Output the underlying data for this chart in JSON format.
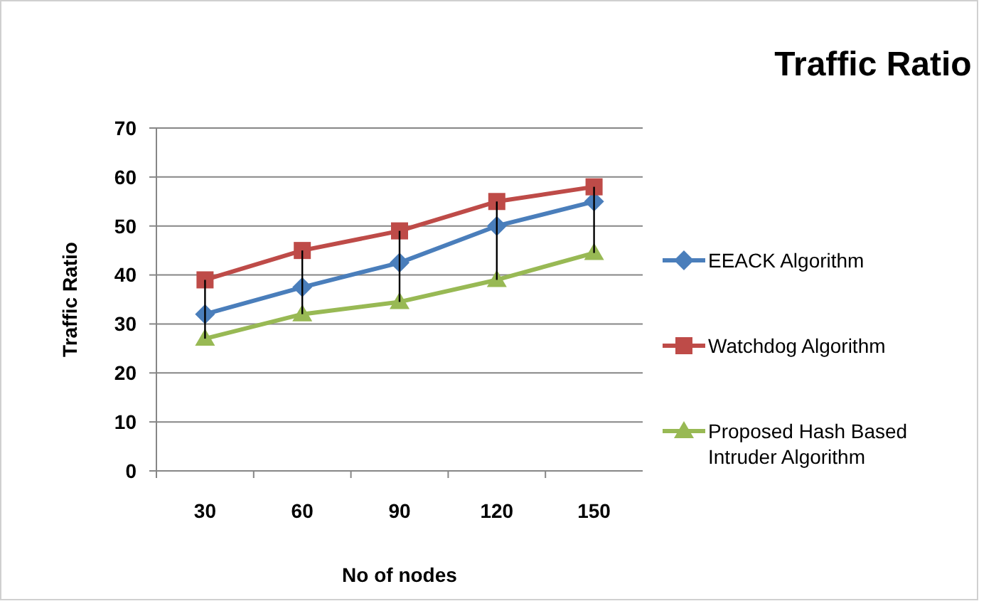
{
  "chart_data": {
    "type": "line",
    "title": "Traffic Ratio",
    "xlabel": "No of nodes",
    "ylabel": "Traffic Ratio",
    "categories": [
      "30",
      "60",
      "90",
      "120",
      "150"
    ],
    "series": [
      {
        "name": "EEACK Algorithm",
        "color": "#4a7ebb",
        "marker": "diamond",
        "values": [
          32,
          37.5,
          42.5,
          50,
          55
        ]
      },
      {
        "name": "Watchdog Algorithm",
        "color": "#be4b48",
        "marker": "square",
        "values": [
          39,
          45,
          49,
          55,
          58
        ],
        "errors": [
          [
            27,
            39
          ],
          [
            32,
            45
          ],
          [
            34.5,
            49
          ],
          [
            39,
            55
          ],
          [
            44.5,
            58
          ]
        ]
      },
      {
        "name": "Proposed Hash Based Intruder Algorithm",
        "color": "#98b954",
        "marker": "triangle",
        "values": [
          27,
          32,
          34.5,
          39,
          44.5
        ]
      }
    ],
    "ylim": [
      0,
      70
    ],
    "yticks": [
      0,
      10,
      20,
      30,
      40,
      50,
      60,
      70
    ],
    "grid": "y",
    "legend": "right"
  }
}
